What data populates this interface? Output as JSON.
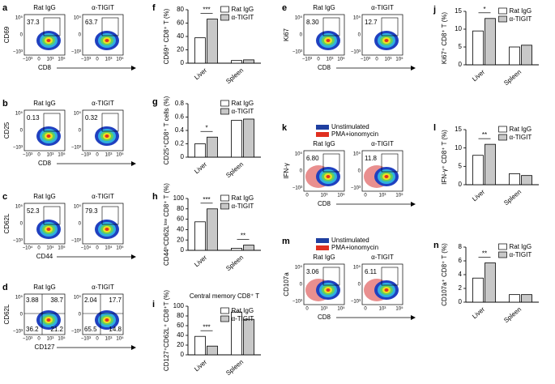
{
  "chart_data": [
    {
      "type": "bar",
      "panel": "f",
      "y_label": "CD69⁺ CD8⁺ T (%)",
      "categories": [
        "Liver",
        "Spleen"
      ],
      "series": [
        {
          "name": "Rat IgG",
          "color": "#ffffff",
          "values": [
            38,
            4
          ]
        },
        {
          "name": "α-TIGIT",
          "color": "#c8c8c8",
          "values": [
            66,
            5
          ]
        }
      ],
      "annotations": [
        "***",
        null
      ],
      "ylim": [
        0,
        80
      ],
      "yticks": [
        0,
        20,
        40,
        60,
        80
      ]
    },
    {
      "type": "bar",
      "panel": "g",
      "y_label": "CD25⁺CD8⁺ T cells (%)",
      "categories": [
        "Liver",
        "Spleen"
      ],
      "series": [
        {
          "name": "Rat IgG",
          "color": "#ffffff",
          "values": [
            0.2,
            0.55
          ]
        },
        {
          "name": "α-TIGIT",
          "color": "#c8c8c8",
          "values": [
            0.3,
            0.57
          ]
        }
      ],
      "annotations": [
        "*",
        null
      ],
      "ylim": [
        0,
        0.8
      ],
      "yticks": [
        0,
        0.2,
        0.4,
        0.6,
        0.8
      ]
    },
    {
      "type": "bar",
      "panel": "h",
      "y_label": "CD44ʰⁱCD62Lˡᵒʷ CD8⁺ T (%)",
      "categories": [
        "Liver",
        "Spleen"
      ],
      "series": [
        {
          "name": "Rat IgG",
          "color": "#ffffff",
          "values": [
            55,
            4
          ]
        },
        {
          "name": "α-TIGIT",
          "color": "#c8c8c8",
          "values": [
            80,
            10
          ]
        }
      ],
      "annotations": [
        "***",
        "**"
      ],
      "ylim": [
        0,
        100
      ],
      "yticks": [
        0,
        20,
        40,
        60,
        80,
        100
      ]
    },
    {
      "type": "bar",
      "panel": "i",
      "title": "Central memory CD8⁺ T",
      "y_label": "CD127⁺CD62L⁺ CD8⁺T (%)",
      "categories": [
        "Liver",
        "Spleen"
      ],
      "series": [
        {
          "name": "Rat IgG",
          "color": "#ffffff",
          "values": [
            38,
            88
          ]
        },
        {
          "name": "α-TIGIT",
          "color": "#c8c8c8",
          "values": [
            18,
            73
          ]
        }
      ],
      "annotations": [
        "***",
        null
      ],
      "ylim": [
        0,
        100
      ],
      "yticks": [
        0,
        20,
        40,
        60,
        80,
        100
      ]
    },
    {
      "type": "bar",
      "panel": "j",
      "y_label": "Ki67⁺ CD8⁺ T (%)",
      "categories": [
        "Liver",
        "Spleen"
      ],
      "series": [
        {
          "name": "Rat IgG",
          "color": "#ffffff",
          "values": [
            9.5,
            5
          ]
        },
        {
          "name": "α-TIGIT",
          "color": "#c8c8c8",
          "values": [
            13,
            5.5
          ]
        }
      ],
      "annotations": [
        "*",
        null
      ],
      "ylim": [
        0,
        15
      ],
      "yticks": [
        0,
        5,
        10,
        15
      ]
    },
    {
      "type": "bar",
      "panel": "l",
      "y_label": "IFN-γ⁺ CD8⁺ T (%)",
      "categories": [
        "Liver",
        "Spleen"
      ],
      "series": [
        {
          "name": "Rat IgG",
          "color": "#ffffff",
          "values": [
            8,
            3
          ]
        },
        {
          "name": "α-TIGIT",
          "color": "#c8c8c8",
          "values": [
            11,
            2.5
          ]
        }
      ],
      "annotations": [
        "**",
        null
      ],
      "ylim": [
        0,
        15
      ],
      "yticks": [
        0,
        5,
        10,
        15
      ]
    },
    {
      "type": "bar",
      "panel": "n",
      "y_label": "CD107a⁺ CD8⁺ T (%)",
      "categories": [
        "Liver",
        "Spleen"
      ],
      "series": [
        {
          "name": "Rat IgG",
          "color": "#ffffff",
          "values": [
            3.5,
            1.1
          ]
        },
        {
          "name": "α-TIGIT",
          "color": "#c8c8c8",
          "values": [
            5.7,
            1.1
          ]
        }
      ],
      "annotations": [
        "**",
        null
      ],
      "ylim": [
        0,
        8
      ],
      "yticks": [
        0,
        2,
        4,
        6,
        8
      ]
    }
  ],
  "flow_panels": [
    {
      "panel": "a",
      "x_label": "CD8",
      "y_label": "CD69",
      "x_ticks": [
        "−10³",
        "0",
        "10³",
        "10⁵"
      ],
      "y_ticks": [
        "10⁵",
        "0",
        "−10³"
      ],
      "plots": [
        {
          "title": "Rat IgG",
          "gates": [
            "37.3"
          ]
        },
        {
          "title": "α-TIGIT",
          "gates": [
            "63.7"
          ]
        }
      ]
    },
    {
      "panel": "b",
      "x_label": "CD8",
      "y_label": "CD25",
      "x_ticks": [
        "−10³",
        "0",
        "10³",
        "10⁵"
      ],
      "y_ticks": [
        "10⁵",
        "0",
        "−10³"
      ],
      "plots": [
        {
          "title": "Rat IgG",
          "gates": [
            "0.13"
          ]
        },
        {
          "title": "α-TIGIT",
          "gates": [
            "0.32"
          ]
        }
      ]
    },
    {
      "panel": "c",
      "x_label": "CD44",
      "y_label": "CD62L",
      "x_ticks": [
        "−10⁴",
        "0",
        "10⁴",
        "10⁵"
      ],
      "y_ticks": [
        "10⁵",
        "0",
        "−10³"
      ],
      "plots": [
        {
          "title": "Rat IgG",
          "gates": [
            "52.3"
          ]
        },
        {
          "title": "α-TIGIT",
          "gates": [
            "79.3"
          ]
        }
      ]
    },
    {
      "panel": "d",
      "x_label": "CD127",
      "y_label": "CD62L",
      "x_ticks": [
        "−10³",
        "0",
        "10³",
        "10⁵"
      ],
      "y_ticks": [
        "10⁵",
        "0",
        "−10³"
      ],
      "plots": [
        {
          "title": "Rat IgG",
          "gates": [
            "3.88",
            "38.7",
            "36.2",
            "21.2"
          ]
        },
        {
          "title": "α-TIGIT",
          "gates": [
            "2.04",
            "17.7",
            "65.5",
            "14.8"
          ]
        }
      ]
    },
    {
      "panel": "e",
      "x_label": "CD8",
      "y_label": "Ki67",
      "x_ticks": [
        "−10³",
        "0",
        "10³",
        "10⁵"
      ],
      "y_ticks": [
        "10⁵",
        "0",
        "−10³"
      ],
      "plots": [
        {
          "title": "Rat IgG",
          "gates": [
            "8.30"
          ]
        },
        {
          "title": "α-TIGIT",
          "gates": [
            "12.7"
          ]
        }
      ]
    },
    {
      "panel": "k",
      "x_label": "CD8",
      "y_label": "IFN-γ",
      "x_ticks": [
        "0",
        "10³",
        "10⁵"
      ],
      "y_ticks": [
        "10⁵",
        "0",
        "−10³"
      ],
      "legend": [
        {
          "name": "Unstimulated",
          "color": "#1f3fa0"
        },
        {
          "name": "PMA+ionomycin",
          "color": "#e03020"
        }
      ],
      "plots": [
        {
          "title": "Rat IgG",
          "gates": [
            "6.80"
          ]
        },
        {
          "title": "α-TIGIT",
          "gates": [
            "11.8"
          ]
        }
      ]
    },
    {
      "panel": "m",
      "x_label": "CD8",
      "y_label": "CD107a",
      "x_ticks": [
        "0",
        "10³",
        "10⁵"
      ],
      "y_ticks": [
        "10⁵",
        "0",
        "−10³"
      ],
      "legend": [
        {
          "name": "Unstimulated",
          "color": "#1f3fa0"
        },
        {
          "name": "PMA+ionomycin",
          "color": "#e03020"
        }
      ],
      "plots": [
        {
          "title": "Rat IgG",
          "gates": [
            "3.06"
          ]
        },
        {
          "title": "α-TIGIT",
          "gates": [
            "6.11"
          ]
        }
      ]
    }
  ]
}
